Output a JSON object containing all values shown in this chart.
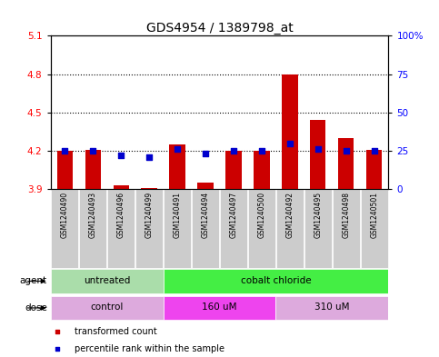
{
  "title": "GDS4954 / 1389798_at",
  "samples": [
    "GSM1240490",
    "GSM1240493",
    "GSM1240496",
    "GSM1240499",
    "GSM1240491",
    "GSM1240494",
    "GSM1240497",
    "GSM1240500",
    "GSM1240492",
    "GSM1240495",
    "GSM1240498",
    "GSM1240501"
  ],
  "transformed_count": [
    4.2,
    4.21,
    3.93,
    3.91,
    4.25,
    3.95,
    4.2,
    4.2,
    4.8,
    4.44,
    4.3,
    4.21
  ],
  "baseline": 3.9,
  "percentile_rank": [
    25,
    25,
    22,
    21,
    26,
    23,
    25,
    25,
    30,
    26,
    25,
    25
  ],
  "ylim_left": [
    3.9,
    5.1
  ],
  "ylim_right": [
    0,
    100
  ],
  "yticks_left": [
    3.9,
    4.2,
    4.5,
    4.8,
    5.1
  ],
  "yticks_right": [
    0,
    25,
    50,
    75,
    100
  ],
  "ytick_labels_left": [
    "3.9",
    "4.2",
    "4.5",
    "4.8",
    "5.1"
  ],
  "ytick_labels_right": [
    "0",
    "25",
    "50",
    "75",
    "100%"
  ],
  "hlines": [
    4.2,
    4.5,
    4.8
  ],
  "bar_color": "#cc0000",
  "dot_color": "#0000cc",
  "agent_groups": [
    {
      "label": "untreated",
      "start": 0,
      "end": 4,
      "color": "#aaddaa"
    },
    {
      "label": "cobalt chloride",
      "start": 4,
      "end": 12,
      "color": "#44ee44"
    }
  ],
  "dose_groups": [
    {
      "label": "control",
      "start": 0,
      "end": 4,
      "color": "#ddaadd"
    },
    {
      "label": "160 uM",
      "start": 4,
      "end": 8,
      "color": "#ee44ee"
    },
    {
      "label": "310 uM",
      "start": 8,
      "end": 12,
      "color": "#ddaadd"
    }
  ],
  "legend_items": [
    {
      "label": "transformed count",
      "color": "#cc0000"
    },
    {
      "label": "percentile rank within the sample",
      "color": "#0000cc"
    }
  ],
  "sample_bg_color": "#cccccc",
  "bar_width": 0.55,
  "dot_size": 20,
  "title_fontsize": 10,
  "tick_fontsize": 7.5,
  "annot_fontsize": 7.5,
  "legend_fontsize": 7
}
